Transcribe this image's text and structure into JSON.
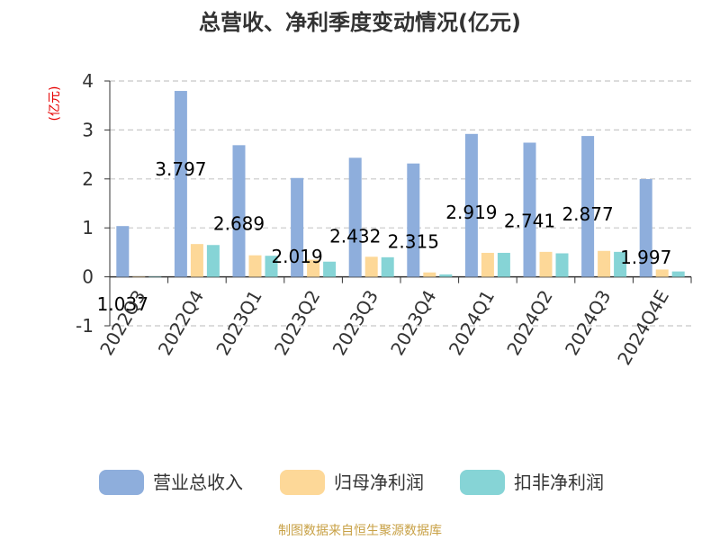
{
  "chart_data": {
    "type": "bar",
    "title": "总营收、净利季度变动情况(亿元)",
    "ylabel": "(亿元)",
    "ylim": [
      -1,
      4
    ],
    "yticks": [
      -1,
      0,
      1,
      2,
      3,
      4
    ],
    "grid": true,
    "legend_position": "bottom",
    "categories": [
      "2022Q3",
      "2022Q4",
      "2023Q1",
      "2023Q2",
      "2023Q3",
      "2023Q4",
      "2024Q1",
      "2024Q2",
      "2024Q3",
      "2024Q4E"
    ],
    "series": [
      {
        "name": "营业总收入",
        "color": "#8eaedc",
        "values": [
          1.037,
          3.797,
          2.689,
          2.019,
          2.432,
          2.315,
          2.919,
          2.741,
          2.877,
          1.997
        ],
        "labels": [
          "1.037",
          "3.797",
          "2.689",
          "2.019",
          "2.432",
          "2.315",
          "2.919",
          "2.741",
          "2.877",
          "1.997"
        ]
      },
      {
        "name": "归母净利润",
        "color": "#fdd898",
        "values": [
          0.0,
          0.67,
          0.44,
          0.35,
          0.41,
          0.09,
          0.49,
          0.51,
          0.53,
          0.15
        ]
      },
      {
        "name": "扣非净利润",
        "color": "#86d4d6",
        "values": [
          0.0,
          0.65,
          0.43,
          0.31,
          0.4,
          0.05,
          0.49,
          0.48,
          0.51,
          0.11
        ]
      }
    ]
  },
  "source": "制图数据来自恒生聚源数据库"
}
